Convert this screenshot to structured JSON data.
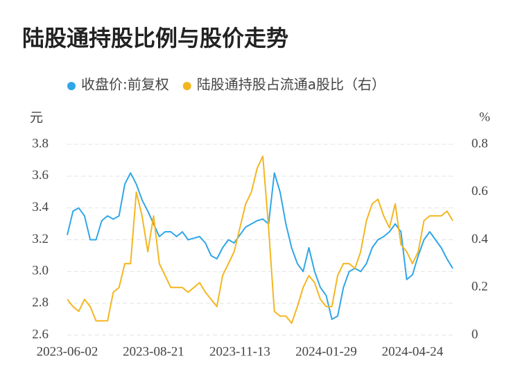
{
  "chart_data": {
    "type": "line",
    "title": "陆股通持股比例与股价走势",
    "y_label": "元",
    "y2_label": "%",
    "categories": [
      "2023-06-02",
      null,
      null,
      null,
      null,
      null,
      null,
      null,
      null,
      null,
      null,
      null,
      null,
      null,
      null,
      "2023-08-21",
      null,
      null,
      null,
      null,
      null,
      null,
      null,
      null,
      null,
      null,
      null,
      null,
      null,
      null,
      "2023-11-13",
      null,
      null,
      null,
      null,
      null,
      null,
      null,
      null,
      null,
      null,
      null,
      null,
      null,
      null,
      "2024-01-29",
      null,
      null,
      null,
      null,
      null,
      null,
      null,
      null,
      null,
      null,
      null,
      null,
      null,
      null,
      "2024-04-24",
      null,
      null,
      null,
      null,
      null,
      null,
      null
    ],
    "ylim": [
      2.6,
      3.8
    ],
    "yticks": [
      2.6,
      2.8,
      {
        "value": 3,
        "label": "3.0"
      },
      3.2,
      3.4,
      3.6,
      3.8
    ],
    "y2lim": [
      0,
      0.8
    ],
    "y2ticks": [
      0,
      0.2,
      0.4,
      0.6,
      0.8
    ],
    "grid": true,
    "series": [
      {
        "name": "收盘价:前复权",
        "color": "#2fa6e8",
        "values": [
          3.23,
          3.38,
          3.4,
          3.35,
          3.2,
          3.2,
          3.32,
          3.35,
          3.33,
          3.35,
          3.55,
          3.62,
          3.55,
          3.45,
          3.38,
          3.3,
          3.22,
          3.25,
          3.25,
          3.22,
          3.25,
          3.2,
          3.21,
          3.22,
          3.18,
          3.1,
          3.08,
          3.15,
          3.2,
          3.18,
          3.23,
          3.28,
          3.3,
          3.32,
          3.33,
          3.3,
          3.62,
          3.5,
          3.3,
          3.15,
          3.05,
          3.0,
          3.15,
          3.0,
          2.9,
          2.85,
          2.7,
          2.72,
          2.9,
          3.0,
          3.02,
          3.0,
          3.05,
          3.15,
          3.2,
          3.22,
          3.25,
          3.3,
          3.25,
          2.95,
          2.98,
          3.1,
          3.2,
          3.25,
          3.2,
          3.15,
          3.08,
          3.02
        ]
      },
      {
        "name": "陆股通持股占流通a股比（右）",
        "color": "#f3b61f",
        "axis": "y2",
        "values": [
          0.15,
          0.12,
          0.1,
          0.15,
          0.12,
          0.06,
          0.06,
          0.06,
          0.18,
          0.2,
          0.3,
          0.3,
          0.6,
          0.5,
          0.35,
          0.5,
          0.3,
          0.25,
          0.2,
          0.2,
          0.2,
          0.18,
          0.2,
          0.22,
          0.18,
          0.15,
          0.12,
          0.25,
          0.3,
          0.35,
          0.45,
          0.55,
          0.6,
          0.7,
          0.75,
          0.45,
          0.1,
          0.08,
          0.08,
          0.05,
          0.12,
          0.2,
          0.25,
          0.22,
          0.15,
          0.12,
          0.12,
          0.25,
          0.3,
          0.3,
          0.28,
          0.35,
          0.48,
          0.55,
          0.57,
          0.5,
          0.45,
          0.55,
          0.38,
          0.35,
          0.3,
          0.35,
          0.48,
          0.5,
          0.5,
          0.5,
          0.52,
          0.48
        ]
      }
    ]
  }
}
